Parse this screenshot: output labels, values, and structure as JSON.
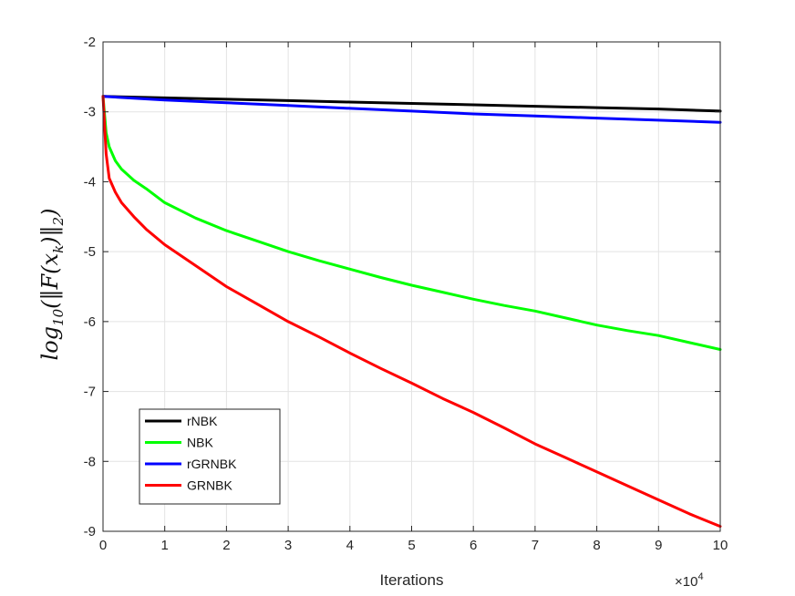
{
  "chart_data": {
    "type": "line",
    "title": "",
    "xlabel": "Iterations",
    "ylabel": "log10(||F(xk)||2)",
    "x_exponent_label": "×10^4",
    "x_multiplier": "×10",
    "x_multiplier_exp": "4",
    "xlim": [
      0,
      10
    ],
    "ylim": [
      -9,
      -2
    ],
    "xticks": [
      "0",
      "1",
      "2",
      "3",
      "4",
      "5",
      "6",
      "7",
      "8",
      "9",
      "10"
    ],
    "yticks": [
      "-2",
      "-3",
      "-4",
      "-5",
      "-6",
      "-7",
      "-8",
      "-9"
    ],
    "grid": true,
    "legend_position": "bottom-left",
    "series": [
      {
        "name": "rNBK",
        "color": "#000000",
        "x": [
          0,
          1,
          2,
          3,
          4,
          5,
          6,
          7,
          8,
          9,
          10
        ],
        "y": [
          -2.78,
          -2.8,
          -2.82,
          -2.84,
          -2.86,
          -2.88,
          -2.9,
          -2.92,
          -2.94,
          -2.96,
          -2.99
        ]
      },
      {
        "name": "NBK",
        "color": "#00ff00",
        "x": [
          0,
          0.05,
          0.1,
          0.2,
          0.3,
          0.5,
          0.7,
          1,
          1.5,
          2,
          2.5,
          3,
          3.5,
          4,
          4.5,
          5,
          5.5,
          6,
          6.5,
          7,
          7.5,
          8,
          8.5,
          9,
          9.5,
          10
        ],
        "y": [
          -2.78,
          -3.3,
          -3.5,
          -3.7,
          -3.82,
          -3.98,
          -4.1,
          -4.3,
          -4.52,
          -4.7,
          -4.85,
          -5.0,
          -5.13,
          -5.25,
          -5.37,
          -5.48,
          -5.58,
          -5.68,
          -5.77,
          -5.85,
          -5.95,
          -6.05,
          -6.13,
          -6.2,
          -6.3,
          -6.4
        ]
      },
      {
        "name": "rGRNBK",
        "color": "#0000ff",
        "x": [
          0,
          1,
          2,
          3,
          4,
          5,
          6,
          7,
          8,
          9,
          10
        ],
        "y": [
          -2.78,
          -2.83,
          -2.87,
          -2.91,
          -2.95,
          -2.99,
          -3.03,
          -3.06,
          -3.09,
          -3.12,
          -3.15
        ]
      },
      {
        "name": "GRNBK",
        "color": "#ff0000",
        "x": [
          0,
          0.05,
          0.1,
          0.2,
          0.3,
          0.5,
          0.7,
          1,
          1.5,
          2,
          2.5,
          3,
          3.5,
          4,
          4.5,
          5,
          5.5,
          6,
          6.5,
          7,
          7.5,
          8,
          8.5,
          9,
          9.5,
          10
        ],
        "y": [
          -2.78,
          -3.6,
          -3.95,
          -4.15,
          -4.3,
          -4.5,
          -4.68,
          -4.9,
          -5.2,
          -5.5,
          -5.75,
          -6.0,
          -6.22,
          -6.45,
          -6.67,
          -6.88,
          -7.1,
          -7.3,
          -7.52,
          -7.75,
          -7.95,
          -8.15,
          -8.35,
          -8.55,
          -8.75,
          -8.93
        ]
      }
    ]
  }
}
